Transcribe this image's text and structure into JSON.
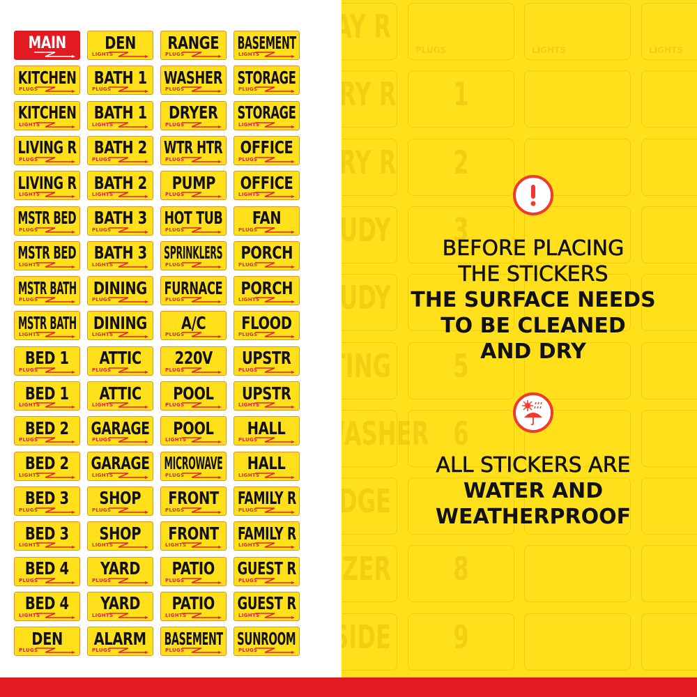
{
  "colors": {
    "sticker_yellow": "#FFE01A",
    "sticker_border": "#E0902E",
    "main_red": "#E21B22",
    "sub_red": "#E0252A",
    "panel_yellow": "#FFE01A",
    "icon_red": "#EE3B2E",
    "bottom_bar": "#E21B22"
  },
  "stickers": [
    [
      {
        "name": "MAIN",
        "sub": "",
        "main": true
      },
      {
        "name": "DEN",
        "sub": "LIGHTS"
      },
      {
        "name": "RANGE",
        "sub": "PLUGS"
      },
      {
        "name": "BASEMENT",
        "sub": "LIGHTS"
      }
    ],
    [
      {
        "name": "KITCHEN",
        "sub": "PLUGS"
      },
      {
        "name": "BATH 1",
        "sub": "PLUGS"
      },
      {
        "name": "WASHER",
        "sub": "PLUGS"
      },
      {
        "name": "STORAGE",
        "sub": "PLUGS"
      }
    ],
    [
      {
        "name": "KITCHEN",
        "sub": "LIGHTS"
      },
      {
        "name": "BATH 1",
        "sub": "LIGHTS"
      },
      {
        "name": "DRYER",
        "sub": "PLUGS"
      },
      {
        "name": "STORAGE",
        "sub": "LIGHTS"
      }
    ],
    [
      {
        "name": "LIVING R",
        "sub": "PLUGS"
      },
      {
        "name": "BATH 2",
        "sub": "PLUGS"
      },
      {
        "name": "WTR HTR",
        "sub": "PLUGS"
      },
      {
        "name": "OFFICE",
        "sub": "PLUGS"
      }
    ],
    [
      {
        "name": "LIVING R",
        "sub": "LIGHTS"
      },
      {
        "name": "BATH 2",
        "sub": "LIGHTS"
      },
      {
        "name": "PUMP",
        "sub": "PLUGS"
      },
      {
        "name": "OFFICE",
        "sub": "LIGHTS"
      }
    ],
    [
      {
        "name": "MSTR BED",
        "sub": "PLUGS"
      },
      {
        "name": "BATH 3",
        "sub": "PLUGS"
      },
      {
        "name": "HOT TUB",
        "sub": "PLUGS"
      },
      {
        "name": "FAN",
        "sub": "PLUGS"
      }
    ],
    [
      {
        "name": "MSTR BED",
        "sub": "LIGHTS"
      },
      {
        "name": "BATH 3",
        "sub": "LIGHTS"
      },
      {
        "name": "SPRINKLERS",
        "sub": "PLUGS"
      },
      {
        "name": "PORCH",
        "sub": "PLUGS"
      }
    ],
    [
      {
        "name": "MSTR BATH",
        "sub": "PLUGS"
      },
      {
        "name": "DINING",
        "sub": "PLUGS"
      },
      {
        "name": "FURNACE",
        "sub": "PLUGS"
      },
      {
        "name": "PORCH",
        "sub": "LIGHTS"
      }
    ],
    [
      {
        "name": "MSTR BATH",
        "sub": "LIGHTS"
      },
      {
        "name": "DINING",
        "sub": "LIGHTS"
      },
      {
        "name": "A/C",
        "sub": "PLUGS"
      },
      {
        "name": "FLOOD",
        "sub": "PLUGS"
      }
    ],
    [
      {
        "name": "BED 1",
        "sub": "PLUGS"
      },
      {
        "name": "ATTIC",
        "sub": "PLUGS"
      },
      {
        "name": "220V",
        "sub": "PLUGS"
      },
      {
        "name": "UPSTR",
        "sub": "PLUGS"
      }
    ],
    [
      {
        "name": "BED 1",
        "sub": "LIGHTS"
      },
      {
        "name": "ATTIC",
        "sub": "LIGHTS"
      },
      {
        "name": "POOL",
        "sub": "PLUGS"
      },
      {
        "name": "UPSTR",
        "sub": "LIGHTS"
      }
    ],
    [
      {
        "name": "BED 2",
        "sub": "PLUGS"
      },
      {
        "name": "GARAGE",
        "sub": "PLUGS"
      },
      {
        "name": "POOL",
        "sub": "LIGHTS"
      },
      {
        "name": "HALL",
        "sub": "PLUGS"
      }
    ],
    [
      {
        "name": "BED 2",
        "sub": "LIGHTS"
      },
      {
        "name": "GARAGE",
        "sub": "LIGHTS"
      },
      {
        "name": "MICROWAVE",
        "sub": "PLUGS"
      },
      {
        "name": "HALL",
        "sub": "LIGHTS"
      }
    ],
    [
      {
        "name": "BED 3",
        "sub": "PLUGS"
      },
      {
        "name": "SHOP",
        "sub": "PLUGS"
      },
      {
        "name": "FRONT",
        "sub": "PLUGS"
      },
      {
        "name": "FAMILY R",
        "sub": "PLUGS"
      }
    ],
    [
      {
        "name": "BED 3",
        "sub": "LIGHTS"
      },
      {
        "name": "SHOP",
        "sub": "LIGHTS"
      },
      {
        "name": "FRONT",
        "sub": "LIGHTS"
      },
      {
        "name": "FAMILY R",
        "sub": "LIGHTS"
      }
    ],
    [
      {
        "name": "BED 4",
        "sub": "PLUGS"
      },
      {
        "name": "YARD",
        "sub": "PLUGS"
      },
      {
        "name": "PATIO",
        "sub": "PLUGS"
      },
      {
        "name": "GUEST R",
        "sub": "PLUGS"
      }
    ],
    [
      {
        "name": "BED 4",
        "sub": "LIGHTS"
      },
      {
        "name": "YARD",
        "sub": "LIGHTS"
      },
      {
        "name": "PATIO",
        "sub": "LIGHTS"
      },
      {
        "name": "GUEST R",
        "sub": "LIGHTS"
      }
    ],
    [
      {
        "name": "DEN",
        "sub": "PLUGS"
      },
      {
        "name": "ALARM",
        "sub": "PLUGS"
      },
      {
        "name": "BASEMENT",
        "sub": "PLUGS"
      },
      {
        "name": "SUNROOM",
        "sub": "PLUGS"
      }
    ]
  ],
  "watermark": {
    "left_column": [
      "AY R",
      "DRY R",
      "DRY R",
      "UDY",
      "UDY",
      "TING",
      "WASHER",
      "DGE",
      "EZER",
      "SIDE"
    ],
    "number_column": [
      "",
      "1",
      "2",
      "3",
      "",
      "5",
      "6",
      "",
      "8",
      "9"
    ],
    "top_row_subs": [
      "PLUGS",
      "LIGHTS",
      "LIGHTS"
    ]
  },
  "notice": {
    "icon": "exclamation-icon",
    "lines": [
      {
        "text": "BEFORE PLACING",
        "weight": "med"
      },
      {
        "text": "THE STICKERS",
        "weight": "med"
      },
      {
        "text": "THE SURFACE NEEDS",
        "weight": "bold"
      },
      {
        "text": "TO BE CLEANED",
        "weight": "bold"
      },
      {
        "text": "AND DRY",
        "weight": "bold"
      }
    ]
  },
  "weather": {
    "icon": "sun-rain-umbrella-icon",
    "lines": [
      {
        "text": "ALL STICKERS ARE",
        "weight": "med"
      },
      {
        "text": "WATER AND",
        "weight": "bold"
      },
      {
        "text": "WEATHERPROOF",
        "weight": "bold"
      }
    ]
  }
}
